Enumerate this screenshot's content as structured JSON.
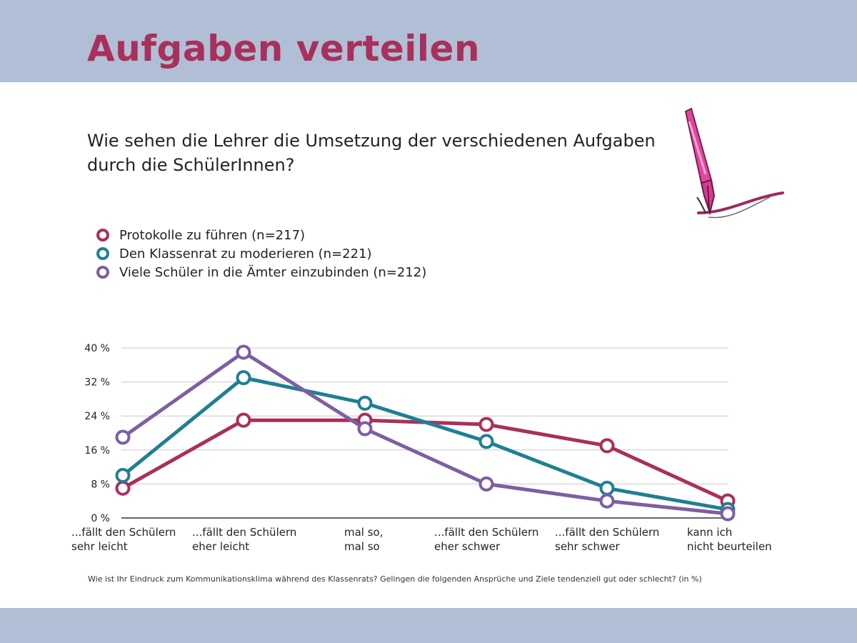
{
  "header": {
    "title": "Aufgaben verteilen"
  },
  "question": {
    "line1": "Wie sehen die Lehrer die Umsetzung der verschiedenen Aufgaben",
    "line2": "durch die SchülerInnen?"
  },
  "illustration": {
    "icon": "fountain-pen-icon",
    "color": "#e0479e"
  },
  "colors": {
    "band": "#b0bfd6",
    "title": "#a8305a"
  },
  "chart_data": {
    "type": "line",
    "categories": [
      [
        "...fällt den Schülern",
        "sehr leicht"
      ],
      [
        "...fällt den Schülern",
        "eher leicht"
      ],
      [
        "mal so,",
        "mal so"
      ],
      [
        "...fällt den Schülern",
        "eher schwer"
      ],
      [
        "...fällt den Schülern",
        "sehr schwer"
      ],
      [
        "kann ich",
        "nicht beurteilen"
      ]
    ],
    "series": [
      {
        "name": "Protokolle zu führen (n=217)",
        "color": "#a8305a",
        "values": [
          7,
          23,
          23,
          22,
          17,
          4
        ]
      },
      {
        "name": "Den Klassenrat zu moderieren (n=221)",
        "color": "#1f7f93",
        "values": [
          10,
          33,
          27,
          18,
          7,
          2
        ]
      },
      {
        "name": "Viele Schüler in die Ämter einzubinden (n=212)",
        "color": "#7d5ea3",
        "values": [
          19,
          39,
          21,
          8,
          4,
          1
        ]
      }
    ],
    "yticks": [
      "0 %",
      "8 %",
      "16 %",
      "24 %",
      "32 %",
      "40 %"
    ],
    "ylim": [
      0,
      40
    ],
    "grid": true,
    "legend_position": "top-left"
  },
  "footnote": "Wie ist Ihr Eindruck zum Kommunikationsklima während des Klassenrats? Gelingen die folgenden Ansprüche und Ziele tendenziell gut oder schlecht? (in %)"
}
